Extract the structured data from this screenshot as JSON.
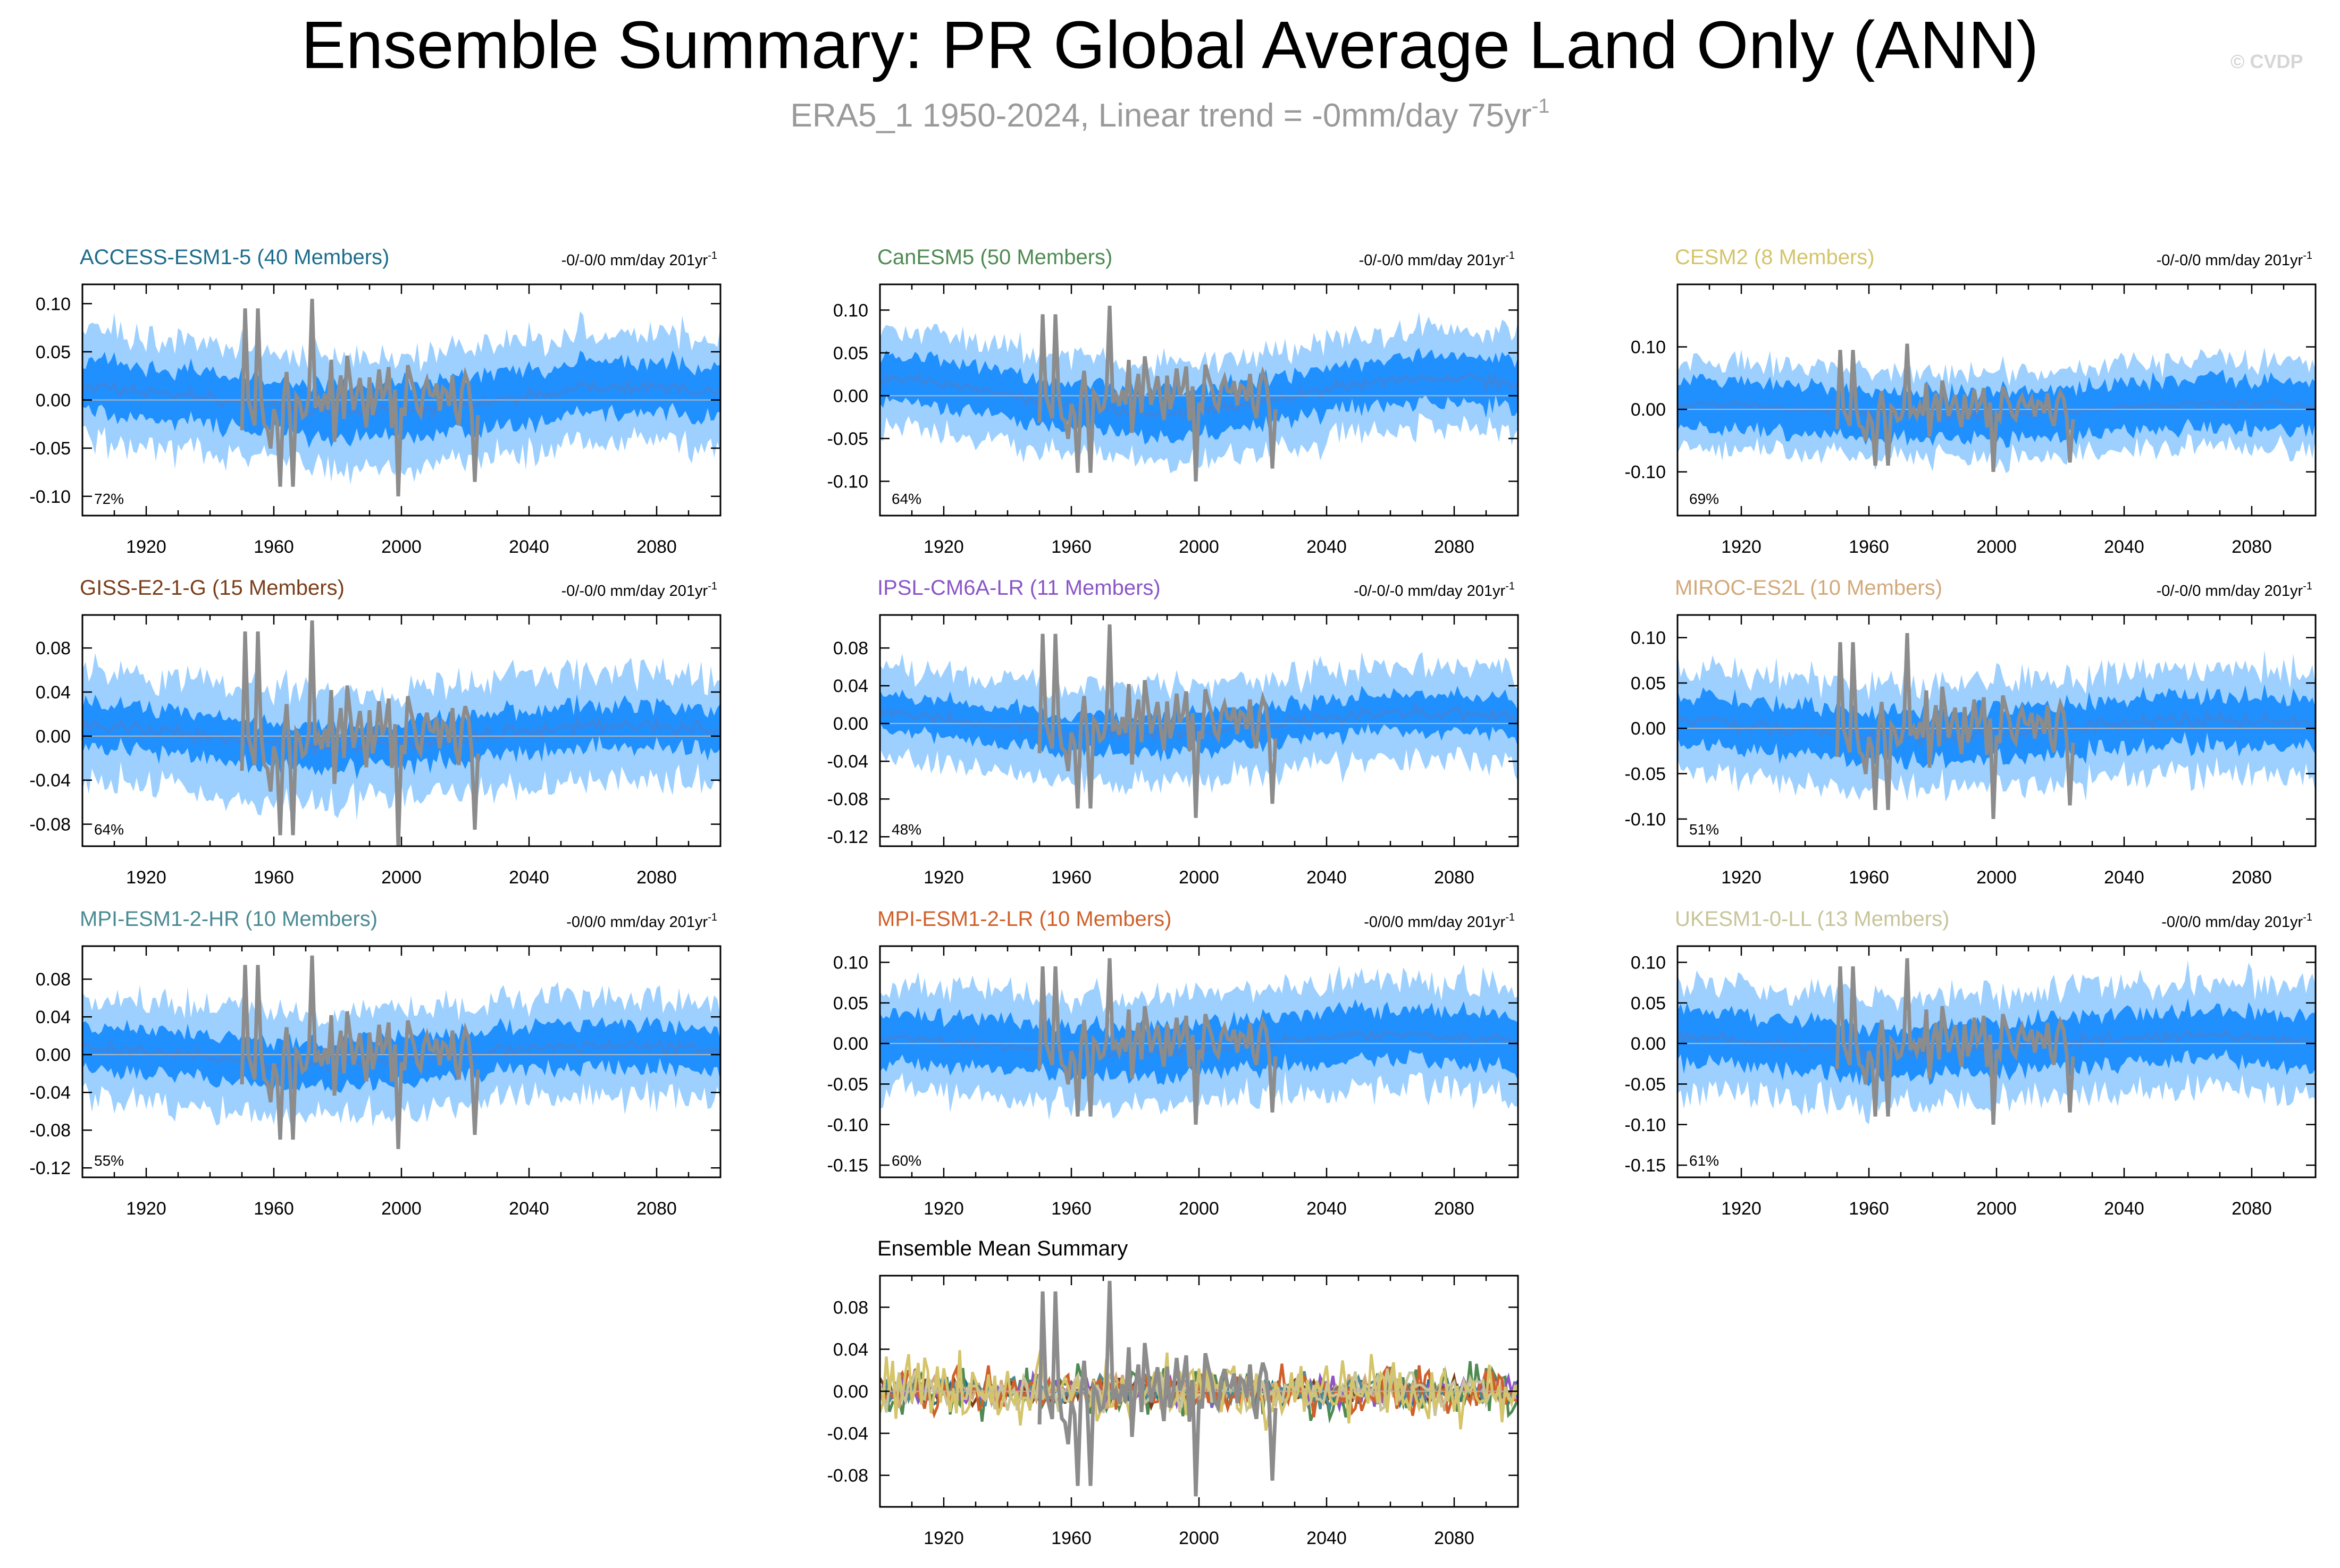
{
  "header": {
    "title": "Ensemble Summary: PR Global Average Land Only (ANN)",
    "subtitle": "ERA5_1 1950-2024, Linear trend = -0mm/day 75yr",
    "subtitle_sup": "-1",
    "watermark": "© CVDP"
  },
  "colors": {
    "inner_band": "#2090ff",
    "outer_band": "#9dd0ff",
    "ensemble_mean_line": "#3a86e0",
    "observation_line": "#8c8c8c"
  },
  "chart_data": [
    {
      "type": "area",
      "title": "ACCESS-ESM1-5 (40 Members)",
      "title_color": "#1c6d8c",
      "trend_label": "-0/-0/0 mm/day 201yr",
      "trend_sup": "-1",
      "percent_label": "72%",
      "x_range": [
        1900,
        2100
      ],
      "x_ticks": [
        "1920",
        "1960",
        "2000",
        "2040",
        "2080"
      ],
      "y_range": [
        -0.12,
        0.12
      ],
      "y_ticks": [
        "0.10",
        "0.05",
        "0.00",
        "-0.05",
        "-0.10"
      ],
      "y_tick_values": [
        0.1,
        0.05,
        0.0,
        -0.05,
        -0.1
      ],
      "series": [
        {
          "role": "ensemble_mean",
          "approx_amplitude": 0.012
        },
        {
          "role": "inner_band",
          "approx_halfwidth": 0.035
        },
        {
          "role": "outer_band",
          "approx_halfwidth": 0.065
        },
        {
          "role": "observation",
          "x_start": 1950,
          "x_end": 2024
        }
      ]
    },
    {
      "type": "area",
      "title": "CanESM5 (50 Members)",
      "title_color": "#4e8a52",
      "trend_label": "-0/-0/0 mm/day 201yr",
      "trend_sup": "-1",
      "percent_label": "64%",
      "x_range": [
        1900,
        2100
      ],
      "x_ticks": [
        "1920",
        "1960",
        "2000",
        "2040",
        "2080"
      ],
      "y_range": [
        -0.14,
        0.13
      ],
      "y_ticks": [
        "0.10",
        "0.05",
        "0.00",
        "-0.05",
        "-0.10"
      ],
      "y_tick_values": [
        0.1,
        0.05,
        0.0,
        -0.05,
        -0.1
      ],
      "series": [
        {
          "role": "ensemble_mean",
          "approx_amplitude": 0.02
        },
        {
          "role": "inner_band",
          "approx_halfwidth": 0.035
        },
        {
          "role": "outer_band",
          "approx_halfwidth": 0.065
        },
        {
          "role": "observation",
          "x_start": 1950,
          "x_end": 2024
        }
      ]
    },
    {
      "type": "area",
      "title": "CESM2 (8 Members)",
      "title_color": "#d4c46a",
      "trend_label": "-0/-0/0 mm/day 201yr",
      "trend_sup": "-1",
      "percent_label": "69%",
      "x_range": [
        1900,
        2100
      ],
      "x_ticks": [
        "1920",
        "1960",
        "2000",
        "2040",
        "2080"
      ],
      "y_range": [
        -0.17,
        0.2
      ],
      "y_ticks": [
        "0.10",
        "0.00",
        "-0.10"
      ],
      "y_tick_values": [
        0.1,
        0.0,
        -0.1
      ],
      "series": [
        {
          "role": "ensemble_mean",
          "approx_amplitude": 0.01
        },
        {
          "role": "inner_band",
          "approx_halfwidth": 0.05
        },
        {
          "role": "outer_band",
          "approx_halfwidth": 0.08
        },
        {
          "role": "observation",
          "x_start": 1950,
          "x_end": 2024
        }
      ]
    },
    {
      "type": "area",
      "title": "GISS-E2-1-G (15 Members)",
      "title_color": "#7a3e1a",
      "trend_label": "-0/-0/0 mm/day 201yr",
      "trend_sup": "-1",
      "percent_label": "64%",
      "x_range": [
        1900,
        2100
      ],
      "x_ticks": [
        "1920",
        "1960",
        "2000",
        "2040",
        "2080"
      ],
      "y_range": [
        -0.1,
        0.11
      ],
      "y_ticks": [
        "0.08",
        "0.04",
        "0.00",
        "-0.04",
        "-0.08"
      ],
      "y_tick_values": [
        0.08,
        0.04,
        0.0,
        -0.04,
        -0.08
      ],
      "series": [
        {
          "role": "ensemble_mean",
          "approx_amplitude": 0.01
        },
        {
          "role": "inner_band",
          "approx_halfwidth": 0.025
        },
        {
          "role": "outer_band",
          "approx_halfwidth": 0.055
        },
        {
          "role": "observation",
          "x_start": 1950,
          "x_end": 2024
        }
      ]
    },
    {
      "type": "area",
      "title": "IPSL-CM6A-LR (11 Members)",
      "title_color": "#8a55c8",
      "trend_label": "-0/-0/-0 mm/day 201yr",
      "trend_sup": "-1",
      "percent_label": "48%",
      "x_range": [
        1900,
        2100
      ],
      "x_ticks": [
        "1920",
        "1960",
        "2000",
        "2040",
        "2080"
      ],
      "y_range": [
        -0.13,
        0.115
      ],
      "y_ticks": [
        "0.08",
        "0.04",
        "0.00",
        "-0.04",
        "-0.08",
        "-0.12"
      ],
      "y_tick_values": [
        0.08,
        0.04,
        0.0,
        -0.04,
        -0.08,
        -0.12
      ],
      "series": [
        {
          "role": "ensemble_mean",
          "approx_amplitude": 0.012
        },
        {
          "role": "inner_band",
          "approx_halfwidth": 0.025
        },
        {
          "role": "outer_band",
          "approx_halfwidth": 0.055
        },
        {
          "role": "observation",
          "x_start": 1950,
          "x_end": 2024
        }
      ]
    },
    {
      "type": "area",
      "title": "MIROC-ES2L (10 Members)",
      "title_color": "#d2a87a",
      "trend_label": "-0/-0/0 mm/day 201yr",
      "trend_sup": "-1",
      "percent_label": "51%",
      "x_range": [
        1900,
        2100
      ],
      "x_ticks": [
        "1920",
        "1960",
        "2000",
        "2040",
        "2080"
      ],
      "y_range": [
        -0.13,
        0.125
      ],
      "y_ticks": [
        "0.10",
        "0.05",
        "0.00",
        "-0.05",
        "-0.10"
      ],
      "y_tick_values": [
        0.1,
        0.05,
        0.0,
        -0.05,
        -0.1
      ],
      "series": [
        {
          "role": "ensemble_mean",
          "approx_amplitude": 0.01
        },
        {
          "role": "inner_band",
          "approx_halfwidth": 0.035
        },
        {
          "role": "outer_band",
          "approx_halfwidth": 0.065
        },
        {
          "role": "observation",
          "x_start": 1950,
          "x_end": 2024
        }
      ]
    },
    {
      "type": "area",
      "title": "MPI-ESM1-2-HR (10 Members)",
      "title_color": "#4a8a93",
      "trend_label": "-0/0/0 mm/day 201yr",
      "trend_sup": "-1",
      "percent_label": "55%",
      "x_range": [
        1900,
        2100
      ],
      "x_ticks": [
        "1920",
        "1960",
        "2000",
        "2040",
        "2080"
      ],
      "y_range": [
        -0.13,
        0.115
      ],
      "y_ticks": [
        "0.08",
        "0.04",
        "0.00",
        "-0.04",
        "-0.08",
        "-0.12"
      ],
      "y_tick_values": [
        0.08,
        0.04,
        0.0,
        -0.04,
        -0.08,
        -0.12
      ],
      "series": [
        {
          "role": "ensemble_mean",
          "approx_amplitude": 0.01
        },
        {
          "role": "inner_band",
          "approx_halfwidth": 0.03
        },
        {
          "role": "outer_band",
          "approx_halfwidth": 0.06
        },
        {
          "role": "observation",
          "x_start": 1950,
          "x_end": 2024
        }
      ]
    },
    {
      "type": "area",
      "title": "MPI-ESM1-2-LR (10 Members)",
      "title_color": "#d0602a",
      "trend_label": "-0/0/0 mm/day 201yr",
      "trend_sup": "-1",
      "percent_label": "60%",
      "x_range": [
        1900,
        2100
      ],
      "x_ticks": [
        "1920",
        "1960",
        "2000",
        "2040",
        "2080"
      ],
      "y_range": [
        -0.165,
        0.12
      ],
      "y_ticks": [
        "0.10",
        "0.05",
        "0.00",
        "-0.05",
        "-0.10",
        "-0.15"
      ],
      "y_tick_values": [
        0.1,
        0.05,
        0.0,
        -0.05,
        -0.1,
        -0.15
      ],
      "series": [
        {
          "role": "ensemble_mean",
          "approx_amplitude": 0.01
        },
        {
          "role": "inner_band",
          "approx_halfwidth": 0.04
        },
        {
          "role": "outer_band",
          "approx_halfwidth": 0.075
        },
        {
          "role": "observation",
          "x_start": 1950,
          "x_end": 2024
        }
      ]
    },
    {
      "type": "area",
      "title": "UKESM1-0-LL (13 Members)",
      "title_color": "#c8c49a",
      "trend_label": "-0/0/0 mm/day 201yr",
      "trend_sup": "-1",
      "percent_label": "61%",
      "x_range": [
        1900,
        2100
      ],
      "x_ticks": [
        "1920",
        "1960",
        "2000",
        "2040",
        "2080"
      ],
      "y_range": [
        -0.165,
        0.12
      ],
      "y_ticks": [
        "0.10",
        "0.05",
        "0.00",
        "-0.05",
        "-0.10",
        "-0.15"
      ],
      "y_tick_values": [
        0.1,
        0.05,
        0.0,
        -0.05,
        -0.1,
        -0.15
      ],
      "series": [
        {
          "role": "ensemble_mean",
          "approx_amplitude": 0.01
        },
        {
          "role": "inner_band",
          "approx_halfwidth": 0.04
        },
        {
          "role": "outer_band",
          "approx_halfwidth": 0.075
        },
        {
          "role": "observation",
          "x_start": 1950,
          "x_end": 2024
        }
      ]
    },
    {
      "type": "line",
      "title": "Ensemble Mean Summary",
      "title_color": "#000000",
      "x_range": [
        1900,
        2100
      ],
      "x_ticks": [
        "1920",
        "1960",
        "2000",
        "2040",
        "2080"
      ],
      "y_range": [
        -0.11,
        0.11
      ],
      "y_ticks": [
        "0.08",
        "0.04",
        "0.00",
        "-0.04",
        "-0.08"
      ],
      "y_tick_values": [
        0.08,
        0.04,
        0.0,
        -0.04,
        -0.08
      ],
      "series": [
        {
          "role": "model_mean",
          "color": "#1c6d8c",
          "approx_amplitude": 0.01
        },
        {
          "role": "model_mean",
          "color": "#4e8a52",
          "approx_amplitude": 0.02
        },
        {
          "role": "model_mean",
          "color": "#7a3e1a",
          "approx_amplitude": 0.012
        },
        {
          "role": "model_mean",
          "color": "#8a55c8",
          "approx_amplitude": 0.012
        },
        {
          "role": "model_mean",
          "color": "#d2a87a",
          "approx_amplitude": 0.012
        },
        {
          "role": "model_mean",
          "color": "#4a8a93",
          "approx_amplitude": 0.012
        },
        {
          "role": "model_mean",
          "color": "#d0602a",
          "approx_amplitude": 0.018
        },
        {
          "role": "model_mean",
          "color": "#c8c49a",
          "approx_amplitude": 0.015
        },
        {
          "role": "model_mean",
          "color": "#d4c46a",
          "approx_amplitude": 0.03
        },
        {
          "role": "observation",
          "color": "#8c8c8c",
          "x_start": 1950,
          "x_end": 2024
        }
      ]
    }
  ]
}
